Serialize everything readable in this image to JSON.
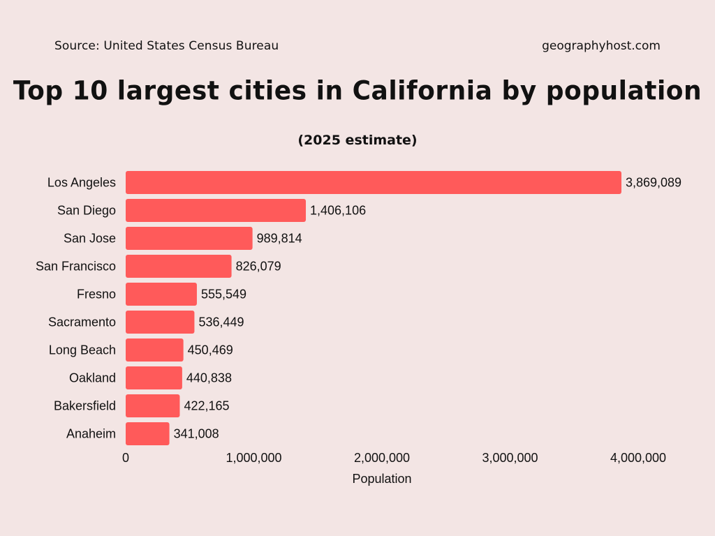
{
  "header": {
    "source": "Source: United States Census Bureau",
    "site": "geographyhost.com"
  },
  "chart_data": {
    "type": "bar",
    "orientation": "horizontal",
    "title": "Top 10 largest cities in California by population",
    "subtitle": "(2025 estimate)",
    "xlabel": "Population",
    "ylabel": "",
    "xlim": [
      0,
      4000000
    ],
    "xticks": [
      0,
      1000000,
      2000000,
      3000000,
      4000000
    ],
    "xtick_labels": [
      "0",
      "1,000,000",
      "2,000,000",
      "3,000,000",
      "4,000,000"
    ],
    "grid": false,
    "bar_color": "#ff5a5a",
    "categories": [
      "Los Angeles",
      "San Diego",
      "San Jose",
      "San Francisco",
      "Fresno",
      "Sacramento",
      "Long Beach",
      "Oakland",
      "Bakersfield",
      "Anaheim"
    ],
    "values": [
      3869089,
      1406106,
      989814,
      826079,
      555549,
      536449,
      450469,
      440838,
      422165,
      341008
    ],
    "value_labels": [
      "3,869,089",
      "1,406,106",
      "989,814",
      "826,079",
      "555,549",
      "536,449",
      "450,469",
      "440,838",
      "422,165",
      "341,008"
    ]
  }
}
